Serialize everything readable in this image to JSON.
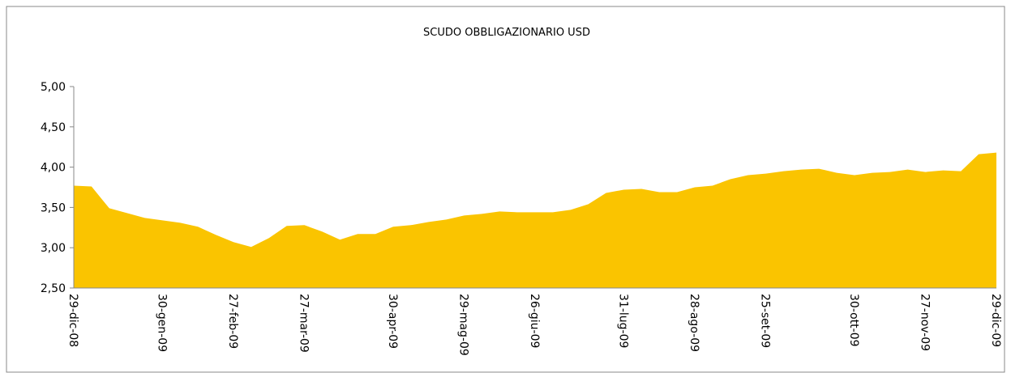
{
  "chart_data": {
    "type": "area",
    "title": "SCUDO OBBLIGAZIONARIO USD",
    "categories": [
      "29-dic-08",
      null,
      null,
      null,
      null,
      "30-gen-09",
      null,
      null,
      null,
      "27-feb-09",
      null,
      null,
      null,
      "27-mar-09",
      null,
      null,
      null,
      null,
      "30-apr-09",
      null,
      null,
      null,
      "29-mag-09",
      null,
      null,
      null,
      "26-giu-09",
      null,
      null,
      null,
      null,
      "31-lug-09",
      null,
      null,
      null,
      "28-ago-09",
      null,
      null,
      null,
      "25-set-09",
      null,
      null,
      null,
      null,
      "30-ott-09",
      null,
      null,
      null,
      "27-nov-09",
      null,
      null,
      null,
      "29-dic-09"
    ],
    "values": [
      3.77,
      3.76,
      3.49,
      3.43,
      3.37,
      3.34,
      3.31,
      3.26,
      3.16,
      3.07,
      3.01,
      3.12,
      3.27,
      3.28,
      3.2,
      3.1,
      3.17,
      3.17,
      3.26,
      3.28,
      3.32,
      3.35,
      3.4,
      3.42,
      3.45,
      3.44,
      3.44,
      3.44,
      3.47,
      3.54,
      3.68,
      3.72,
      3.73,
      3.69,
      3.69,
      3.75,
      3.77,
      3.85,
      3.9,
      3.92,
      3.95,
      3.97,
      3.98,
      3.93,
      3.9,
      3.93,
      3.94,
      3.97,
      3.94,
      3.96,
      3.95,
      4.16,
      4.18
    ],
    "color": "#fac400",
    "ylim": [
      2.5,
      5
    ],
    "yticks": [
      {
        "value": 2.5,
        "label": "2,50"
      },
      {
        "value": 3,
        "label": "3,00"
      },
      {
        "value": 3.5,
        "label": "3,50"
      },
      {
        "value": 4,
        "label": "4,00"
      },
      {
        "value": 4.5,
        "label": "4,50"
      },
      {
        "value": 5,
        "label": "5,00"
      }
    ]
  }
}
